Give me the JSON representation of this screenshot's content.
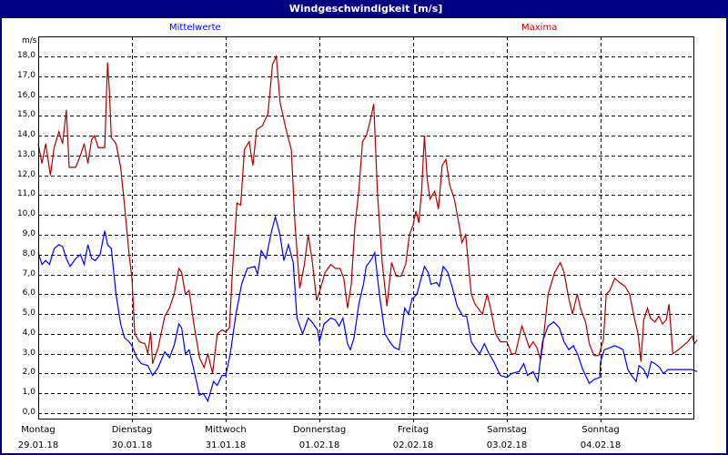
{
  "window": {
    "title": "Windgeschwindigkeit [m/s]"
  },
  "legend": {
    "mean_label": "Mittelwerte",
    "max_label": "Maxima"
  },
  "colors": {
    "titlebar": "#000080",
    "mean": "#0000ff",
    "max": "#b00000",
    "grid": "#000000"
  },
  "chart_data": {
    "type": "line",
    "title": "Windgeschwindigkeit [m/s]",
    "xlabel": "",
    "ylabel": "m/s",
    "ylim": [
      0,
      18
    ],
    "yticks": [
      "0,0",
      "1,0",
      "2,0",
      "3,0",
      "4,0",
      "5,0",
      "6,0",
      "7,0",
      "8,0",
      "9,0",
      "10,0",
      "11,0",
      "12,0",
      "13,0",
      "14,0",
      "15,0",
      "16,0",
      "17,0",
      "18,0"
    ],
    "grid": true,
    "legend_position": "top",
    "categories": [
      {
        "day": "Montag",
        "date": "29.01.18"
      },
      {
        "day": "Dienstag",
        "date": "30.01.18"
      },
      {
        "day": "Mittwoch",
        "date": "31.01.18"
      },
      {
        "day": "Donnerstag",
        "date": "01.02.18"
      },
      {
        "day": "Freitag",
        "date": "02.02.18"
      },
      {
        "day": "Samstag",
        "date": "03.02.18"
      },
      {
        "day": "Sonntag",
        "date": "04.02.18"
      }
    ],
    "x_unit": "days since 29.01.18 00:00",
    "series": [
      {
        "name": "Maxima",
        "color": "#b00000",
        "points": [
          [
            0.0,
            13.6
          ],
          [
            0.04,
            12.6
          ],
          [
            0.08,
            13.6
          ],
          [
            0.13,
            12.0
          ],
          [
            0.17,
            13.4
          ],
          [
            0.22,
            14.2
          ],
          [
            0.26,
            13.6
          ],
          [
            0.3,
            15.3
          ],
          [
            0.33,
            12.4
          ],
          [
            0.4,
            12.4
          ],
          [
            0.45,
            13.0
          ],
          [
            0.49,
            13.6
          ],
          [
            0.53,
            12.6
          ],
          [
            0.57,
            13.8
          ],
          [
            0.6,
            14.0
          ],
          [
            0.64,
            13.4
          ],
          [
            0.71,
            13.4
          ],
          [
            0.72,
            15.0
          ],
          [
            0.74,
            17.7
          ],
          [
            0.76,
            16.2
          ],
          [
            0.78,
            13.9
          ],
          [
            0.83,
            13.6
          ],
          [
            0.88,
            12.4
          ],
          [
            0.92,
            10.5
          ],
          [
            0.97,
            8.0
          ],
          [
            1.0,
            6.8
          ],
          [
            1.03,
            4.0
          ],
          [
            1.08,
            3.6
          ],
          [
            1.14,
            3.5
          ],
          [
            1.17,
            3.0
          ],
          [
            1.2,
            4.1
          ],
          [
            1.22,
            2.5
          ],
          [
            1.28,
            3.3
          ],
          [
            1.35,
            4.9
          ],
          [
            1.4,
            5.3
          ],
          [
            1.45,
            6.0
          ],
          [
            1.5,
            7.3
          ],
          [
            1.53,
            7.1
          ],
          [
            1.57,
            6.0
          ],
          [
            1.61,
            6.2
          ],
          [
            1.66,
            4.5
          ],
          [
            1.72,
            2.8
          ],
          [
            1.77,
            2.3
          ],
          [
            1.81,
            3.0
          ],
          [
            1.86,
            2.0
          ],
          [
            1.91,
            4.0
          ],
          [
            1.96,
            4.2
          ],
          [
            2.0,
            4.1
          ],
          [
            2.04,
            4.3
          ],
          [
            2.07,
            7.0
          ],
          [
            2.12,
            10.6
          ],
          [
            2.16,
            10.5
          ],
          [
            2.2,
            13.3
          ],
          [
            2.25,
            13.7
          ],
          [
            2.29,
            12.5
          ],
          [
            2.33,
            14.3
          ],
          [
            2.39,
            14.5
          ],
          [
            2.45,
            15.1
          ],
          [
            2.5,
            17.6
          ],
          [
            2.54,
            18.0
          ],
          [
            2.58,
            15.7
          ],
          [
            2.64,
            14.4
          ],
          [
            2.7,
            13.3
          ],
          [
            2.74,
            9.5
          ],
          [
            2.79,
            6.3
          ],
          [
            2.84,
            7.5
          ],
          [
            2.88,
            9.0
          ],
          [
            2.92,
            7.8
          ],
          [
            2.97,
            5.7
          ],
          [
            3.0,
            6.1
          ],
          [
            3.06,
            7.1
          ],
          [
            3.12,
            7.5
          ],
          [
            3.17,
            7.3
          ],
          [
            3.22,
            7.3
          ],
          [
            3.26,
            6.8
          ],
          [
            3.3,
            5.3
          ],
          [
            3.34,
            6.5
          ],
          [
            3.38,
            9.5
          ],
          [
            3.42,
            11.2
          ],
          [
            3.46,
            13.7
          ],
          [
            3.5,
            14.0
          ],
          [
            3.54,
            14.7
          ],
          [
            3.58,
            15.6
          ],
          [
            3.62,
            11.0
          ],
          [
            3.67,
            7.6
          ],
          [
            3.72,
            5.4
          ],
          [
            3.77,
            7.6
          ],
          [
            3.82,
            6.9
          ],
          [
            3.87,
            6.9
          ],
          [
            3.92,
            7.5
          ],
          [
            3.96,
            9.0
          ],
          [
            4.0,
            9.5
          ],
          [
            4.03,
            10.2
          ],
          [
            4.06,
            9.6
          ],
          [
            4.09,
            11.2
          ],
          [
            4.12,
            14.0
          ],
          [
            4.15,
            11.8
          ],
          [
            4.18,
            10.8
          ],
          [
            4.23,
            11.2
          ],
          [
            4.27,
            10.3
          ],
          [
            4.31,
            12.5
          ],
          [
            4.35,
            12.8
          ],
          [
            4.39,
            11.5
          ],
          [
            4.44,
            10.8
          ],
          [
            4.49,
            9.5
          ],
          [
            4.52,
            8.6
          ],
          [
            4.56,
            9.0
          ],
          [
            4.62,
            6.0
          ],
          [
            4.66,
            5.5
          ],
          [
            4.74,
            5.0
          ],
          [
            4.79,
            6.0
          ],
          [
            4.83,
            5.2
          ],
          [
            4.88,
            4.0
          ],
          [
            4.93,
            3.6
          ],
          [
            5.0,
            3.6
          ],
          [
            5.05,
            3.0
          ],
          [
            5.09,
            3.0
          ],
          [
            5.13,
            3.8
          ],
          [
            5.16,
            4.4
          ],
          [
            5.19,
            4.0
          ],
          [
            5.24,
            3.3
          ],
          [
            5.28,
            3.6
          ],
          [
            5.32,
            3.3
          ],
          [
            5.36,
            2.7
          ],
          [
            5.38,
            3.3
          ],
          [
            5.44,
            6.0
          ],
          [
            5.51,
            7.1
          ],
          [
            5.57,
            7.6
          ],
          [
            5.61,
            7.1
          ],
          [
            5.66,
            5.8
          ],
          [
            5.7,
            5.0
          ],
          [
            5.75,
            6.0
          ],
          [
            5.79,
            5.2
          ],
          [
            5.84,
            4.6
          ],
          [
            5.88,
            3.5
          ],
          [
            5.93,
            2.9
          ],
          [
            5.98,
            2.9
          ],
          [
            6.03,
            3.7
          ],
          [
            6.06,
            6.0
          ],
          [
            6.1,
            6.2
          ],
          [
            6.15,
            6.8
          ],
          [
            6.2,
            6.6
          ],
          [
            6.26,
            6.4
          ],
          [
            6.31,
            6.0
          ],
          [
            6.36,
            4.8
          ],
          [
            6.4,
            4.0
          ],
          [
            6.43,
            2.6
          ],
          [
            6.46,
            4.7
          ],
          [
            6.5,
            5.3
          ],
          [
            6.53,
            4.8
          ],
          [
            6.58,
            4.6
          ],
          [
            6.62,
            4.9
          ],
          [
            6.66,
            4.5
          ],
          [
            6.7,
            4.7
          ],
          [
            6.73,
            5.5
          ],
          [
            6.77,
            3.0
          ],
          [
            6.83,
            3.2
          ],
          [
            6.88,
            3.4
          ],
          [
            6.93,
            3.6
          ],
          [
            6.98,
            3.9
          ],
          [
            7.0,
            3.5
          ],
          [
            7.03,
            3.7
          ]
        ]
      },
      {
        "name": "Mittelwerte",
        "color": "#0000ff",
        "points": [
          [
            0.0,
            8.1
          ],
          [
            0.04,
            7.5
          ],
          [
            0.08,
            7.7
          ],
          [
            0.12,
            7.5
          ],
          [
            0.17,
            8.3
          ],
          [
            0.22,
            8.5
          ],
          [
            0.26,
            8.4
          ],
          [
            0.3,
            7.8
          ],
          [
            0.34,
            7.4
          ],
          [
            0.4,
            7.8
          ],
          [
            0.45,
            8.0
          ],
          [
            0.49,
            7.5
          ],
          [
            0.53,
            8.5
          ],
          [
            0.57,
            7.8
          ],
          [
            0.61,
            7.7
          ],
          [
            0.66,
            8.0
          ],
          [
            0.71,
            9.2
          ],
          [
            0.74,
            8.5
          ],
          [
            0.78,
            8.3
          ],
          [
            0.83,
            6.0
          ],
          [
            0.88,
            4.5
          ],
          [
            0.92,
            3.8
          ],
          [
            0.97,
            3.6
          ],
          [
            1.0,
            3.4
          ],
          [
            1.05,
            2.8
          ],
          [
            1.1,
            2.5
          ],
          [
            1.17,
            2.4
          ],
          [
            1.22,
            1.9
          ],
          [
            1.28,
            2.3
          ],
          [
            1.35,
            3.1
          ],
          [
            1.4,
            2.8
          ],
          [
            1.45,
            3.4
          ],
          [
            1.5,
            4.5
          ],
          [
            1.53,
            4.3
          ],
          [
            1.57,
            3.0
          ],
          [
            1.61,
            3.2
          ],
          [
            1.66,
            2.2
          ],
          [
            1.72,
            0.9
          ],
          [
            1.76,
            1.0
          ],
          [
            1.81,
            0.6
          ],
          [
            1.87,
            1.6
          ],
          [
            1.91,
            1.4
          ],
          [
            1.96,
            1.9
          ],
          [
            2.0,
            1.9
          ],
          [
            2.05,
            3.0
          ],
          [
            2.11,
            5.0
          ],
          [
            2.17,
            6.5
          ],
          [
            2.23,
            7.3
          ],
          [
            2.31,
            7.4
          ],
          [
            2.34,
            7.0
          ],
          [
            2.38,
            8.2
          ],
          [
            2.43,
            7.8
          ],
          [
            2.49,
            9.2
          ],
          [
            2.53,
            9.9
          ],
          [
            2.58,
            9.0
          ],
          [
            2.62,
            7.7
          ],
          [
            2.67,
            8.5
          ],
          [
            2.72,
            7.6
          ],
          [
            2.76,
            4.8
          ],
          [
            2.82,
            4.0
          ],
          [
            2.88,
            4.8
          ],
          [
            2.92,
            4.6
          ],
          [
            2.98,
            4.2
          ],
          [
            3.0,
            3.6
          ],
          [
            3.05,
            4.5
          ],
          [
            3.12,
            4.8
          ],
          [
            3.17,
            4.7
          ],
          [
            3.21,
            4.4
          ],
          [
            3.25,
            4.8
          ],
          [
            3.3,
            3.5
          ],
          [
            3.33,
            3.2
          ],
          [
            3.37,
            3.8
          ],
          [
            3.42,
            5.5
          ],
          [
            3.47,
            6.5
          ],
          [
            3.5,
            7.4
          ],
          [
            3.56,
            7.8
          ],
          [
            3.59,
            8.1
          ],
          [
            3.64,
            6.0
          ],
          [
            3.7,
            4.0
          ],
          [
            3.75,
            3.6
          ],
          [
            3.8,
            3.3
          ],
          [
            3.85,
            3.2
          ],
          [
            3.91,
            5.3
          ],
          [
            3.95,
            5.0
          ],
          [
            3.99,
            5.8
          ],
          [
            4.0,
            5.8
          ],
          [
            4.04,
            6.0
          ],
          [
            4.08,
            6.7
          ],
          [
            4.12,
            7.4
          ],
          [
            4.16,
            7.1
          ],
          [
            4.19,
            6.5
          ],
          [
            4.25,
            6.6
          ],
          [
            4.28,
            6.4
          ],
          [
            4.32,
            7.4
          ],
          [
            4.37,
            7.1
          ],
          [
            4.42,
            6.3
          ],
          [
            4.47,
            5.4
          ],
          [
            4.53,
            4.9
          ],
          [
            4.57,
            4.9
          ],
          [
            4.62,
            3.6
          ],
          [
            4.66,
            3.3
          ],
          [
            4.71,
            3.0
          ],
          [
            4.76,
            3.5
          ],
          [
            4.81,
            3.0
          ],
          [
            4.86,
            2.6
          ],
          [
            4.93,
            1.9
          ],
          [
            5.0,
            1.8
          ],
          [
            5.05,
            2.0
          ],
          [
            5.13,
            2.1
          ],
          [
            5.18,
            2.5
          ],
          [
            5.22,
            1.9
          ],
          [
            5.28,
            2.1
          ],
          [
            5.33,
            1.6
          ],
          [
            5.38,
            3.6
          ],
          [
            5.44,
            4.4
          ],
          [
            5.5,
            4.6
          ],
          [
            5.56,
            4.3
          ],
          [
            5.61,
            3.6
          ],
          [
            5.66,
            3.2
          ],
          [
            5.71,
            3.4
          ],
          [
            5.76,
            2.9
          ],
          [
            5.81,
            2.2
          ],
          [
            5.88,
            1.5
          ],
          [
            5.93,
            1.7
          ],
          [
            5.99,
            1.8
          ],
          [
            6.0,
            2.6
          ],
          [
            6.04,
            3.2
          ],
          [
            6.1,
            3.3
          ],
          [
            6.15,
            3.4
          ],
          [
            6.2,
            3.3
          ],
          [
            6.24,
            3.2
          ],
          [
            6.29,
            2.2
          ],
          [
            6.33,
            1.9
          ],
          [
            6.38,
            1.6
          ],
          [
            6.41,
            2.4
          ],
          [
            6.46,
            2.2
          ],
          [
            6.5,
            1.8
          ],
          [
            6.54,
            2.6
          ],
          [
            6.58,
            2.5
          ],
          [
            6.63,
            2.3
          ],
          [
            6.67,
            2.0
          ],
          [
            6.72,
            2.2
          ],
          [
            6.8,
            2.2
          ],
          [
            6.89,
            2.2
          ],
          [
            6.97,
            2.2
          ],
          [
            7.03,
            2.1
          ]
        ]
      }
    ]
  }
}
